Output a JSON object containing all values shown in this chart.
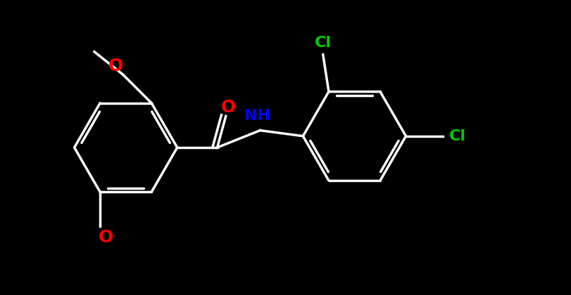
{
  "background_color": "#000000",
  "bond_color": "#ffffff",
  "bond_width": 2.5,
  "atom_colors": {
    "O": "#ff0000",
    "N": "#0000ff",
    "Cl": "#00cc00",
    "C": "#ffffff",
    "H": "#ffffff"
  },
  "font_size_atoms": 16,
  "fig_width": 8.12,
  "fig_height": 4.2
}
